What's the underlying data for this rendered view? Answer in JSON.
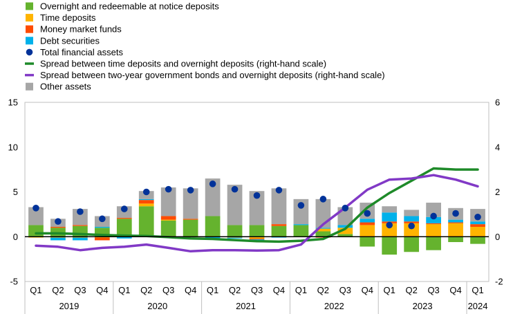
{
  "chart_data": {
    "type": "bar",
    "stacked": true,
    "legend": [
      {
        "label": "Overnight and redeemable at notice deposits",
        "color": "#65b32e",
        "marker": "box"
      },
      {
        "label": "Time deposits",
        "color": "#ffb400",
        "marker": "box"
      },
      {
        "label": "Money market funds",
        "color": "#ff4b00",
        "marker": "box"
      },
      {
        "label": "Debt securities",
        "color": "#00b1ea",
        "marker": "box"
      },
      {
        "label": "Total financial assets",
        "color": "#003299",
        "marker": "dot"
      },
      {
        "label": "Spread between time deposits and overnight deposits (right-hand scale)",
        "color": "#1e8a29",
        "marker": "line"
      },
      {
        "label": "Spread between two-year government bonds and overnight deposits (right-hand scale)",
        "color": "#8139c6",
        "marker": "line"
      },
      {
        "label": "Other assets",
        "color": "#a6a6a6",
        "marker": "box"
      }
    ],
    "legend_position": "top-left",
    "categories": [
      "Q1",
      "Q2",
      "Q3",
      "Q4",
      "Q1",
      "Q2",
      "Q3",
      "Q4",
      "Q1",
      "Q2",
      "Q3",
      "Q4",
      "Q1",
      "Q2",
      "Q3",
      "Q4",
      "Q1",
      "Q2",
      "Q3",
      "Q4",
      "Q1"
    ],
    "years": [
      {
        "label": "2019",
        "quarters": 4
      },
      {
        "label": "2020",
        "quarters": 4
      },
      {
        "label": "2021",
        "quarters": 4
      },
      {
        "label": "2022",
        "quarters": 4
      },
      {
        "label": "2023",
        "quarters": 4
      },
      {
        "label": "2024",
        "quarters": 1
      }
    ],
    "y_left": {
      "min": -5,
      "max": 15,
      "ticks": [
        -5,
        0,
        5,
        10,
        15
      ]
    },
    "y_right": {
      "min": -2,
      "max": 6,
      "ticks": [
        -2,
        0,
        2,
        4,
        6
      ]
    },
    "gridlines": false,
    "bar_series": [
      {
        "name": "Overnight and redeemable at notice deposits",
        "color": "#65b32e",
        "values": [
          1.3,
          1.0,
          1.2,
          1.0,
          2.0,
          3.4,
          1.8,
          1.9,
          2.3,
          1.3,
          1.3,
          1.2,
          1.3,
          0.6,
          0.3,
          -1.1,
          -2.0,
          -1.7,
          -1.5,
          -0.6,
          -0.8
        ]
      },
      {
        "name": "Time deposits",
        "color": "#ffb400",
        "values": [
          -0.1,
          -0.1,
          -0.1,
          -0.1,
          0.0,
          0.3,
          0.1,
          0.0,
          0.0,
          -0.1,
          -0.2,
          0.0,
          0.0,
          0.3,
          0.7,
          1.3,
          1.5,
          1.5,
          1.4,
          1.5,
          1.1
        ]
      },
      {
        "name": "Money market funds",
        "color": "#ff4b00",
        "values": [
          0.0,
          0.1,
          0.1,
          -0.3,
          0.1,
          0.4,
          0.4,
          0.1,
          0.0,
          0.0,
          -0.1,
          0.2,
          0.0,
          -0.1,
          0.0,
          0.3,
          0.2,
          0.2,
          0.1,
          0.1,
          0.3
        ]
      },
      {
        "name": "Debt securities",
        "color": "#00b1ea",
        "values": [
          0.0,
          -0.3,
          -0.3,
          0.1,
          -0.2,
          0.1,
          0.0,
          0.0,
          -0.2,
          -0.1,
          -0.2,
          -0.1,
          0.1,
          0.1,
          0.3,
          0.4,
          1.0,
          0.6,
          0.7,
          0.3,
          0.3
        ]
      },
      {
        "name": "Other assets",
        "color": "#a6a6a6",
        "values": [
          2.0,
          0.9,
          1.8,
          1.2,
          1.3,
          0.9,
          3.2,
          3.4,
          4.2,
          4.5,
          3.8,
          4.0,
          2.8,
          3.2,
          2.0,
          1.8,
          0.7,
          0.7,
          1.6,
          1.3,
          1.4
        ]
      }
    ],
    "total_financial_assets": {
      "name": "Total financial assets",
      "color": "#003299",
      "values": [
        3.2,
        1.7,
        2.8,
        2.0,
        3.1,
        5.0,
        5.3,
        5.2,
        5.9,
        5.3,
        4.6,
        5.2,
        3.5,
        4.2,
        3.2,
        2.6,
        1.3,
        1.2,
        2.3,
        2.6,
        2.2
      ]
    },
    "line_series": [
      {
        "name": "Spread between time deposits and overnight deposits (right-hand scale)",
        "color": "#1e8a29",
        "axis": "right",
        "values": [
          0.15,
          0.15,
          0.12,
          0.08,
          0.05,
          0.03,
          -0.02,
          -0.08,
          -0.1,
          -0.15,
          -0.2,
          -0.22,
          -0.18,
          -0.1,
          0.35,
          1.3,
          1.95,
          2.5,
          3.05,
          3.0,
          3.0
        ]
      },
      {
        "name": "Spread between two-year government bonds and overnight deposits (right-hand scale)",
        "color": "#8139c6",
        "axis": "right",
        "values": [
          -0.4,
          -0.45,
          -0.6,
          -0.5,
          -0.45,
          -0.35,
          -0.5,
          -0.65,
          -0.6,
          -0.6,
          -0.62,
          -0.6,
          -0.35,
          0.55,
          1.3,
          2.1,
          2.55,
          2.6,
          2.75,
          2.55,
          2.25
        ]
      }
    ]
  }
}
